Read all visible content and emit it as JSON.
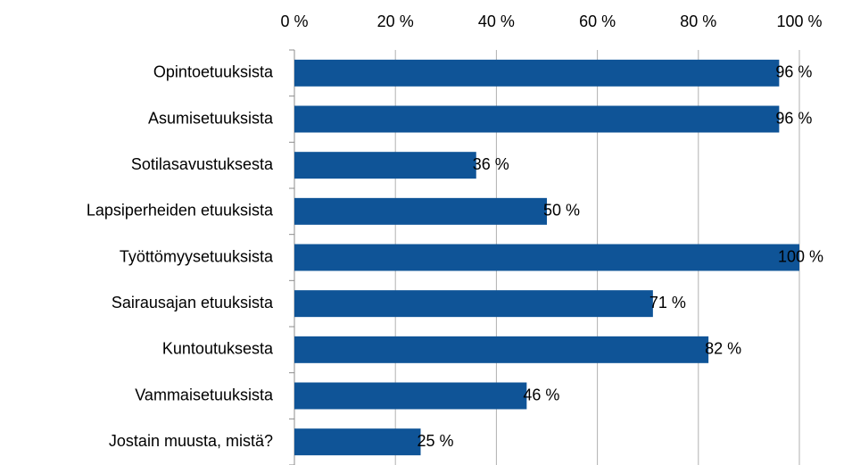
{
  "chart_data": {
    "type": "bar",
    "orientation": "horizontal",
    "categories": [
      "Opintoetuuksista",
      "Asumisetuuksista",
      "Sotilasavustuksesta",
      "Lapsiperheiden etuuksista",
      "Työttömyysetuuksista",
      "Sairausajan etuuksista",
      "Kuntoutuksesta",
      "Vammaisetuuksista",
      "Jostain muusta, mistä?"
    ],
    "values": [
      96,
      96,
      36,
      50,
      100,
      71,
      82,
      46,
      25
    ],
    "value_labels": [
      "96 %",
      "96 %",
      "36 %",
      "50 %",
      "100 %",
      "71 %",
      "82 %",
      "46 %",
      "25 %"
    ],
    "color": "#0f5497",
    "xlim": [
      0,
      100
    ],
    "xticks": [
      {
        "value": 0,
        "label": "0 %"
      },
      {
        "value": 20,
        "label": "20 %"
      },
      {
        "value": 40,
        "label": "40 %"
      },
      {
        "value": 60,
        "label": "60 %"
      },
      {
        "value": 80,
        "label": "80 %"
      },
      {
        "value": 100,
        "label": "100 %"
      }
    ],
    "grid": true
  }
}
